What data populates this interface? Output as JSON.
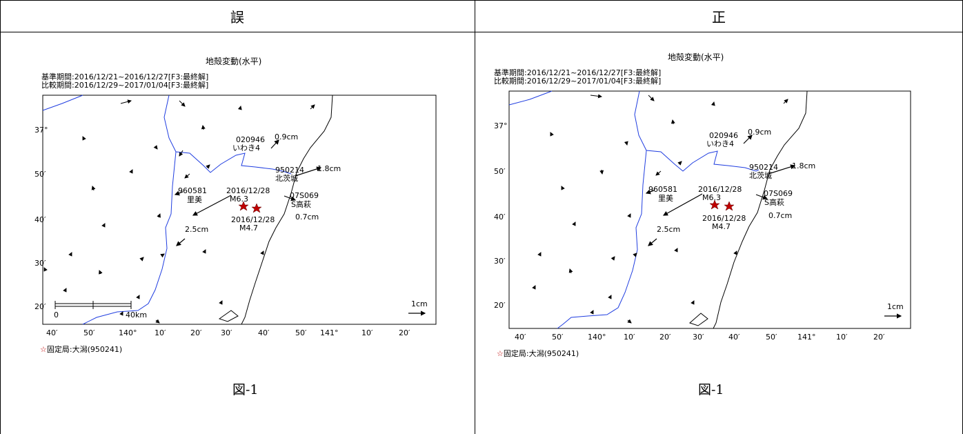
{
  "table": {
    "header_wrong": "誤",
    "header_correct": "正"
  },
  "figure": {
    "title": "地殻変動(水平)",
    "base_period": "基準期間:2016/12/21~2016/12/27[F3:最終解]",
    "compare_period": "比較期間:2016/12/29~2017/01/04[F3:最終解]",
    "fixed_station_star": "☆",
    "fixed_station": "固定局:大潟(950241)",
    "caption": "図-1",
    "lat_labels": [
      "37°",
      "50′",
      "40′",
      "30′",
      "20′"
    ],
    "lon_labels": [
      "40′",
      "50′",
      "140°",
      "10′",
      "20′",
      "30′",
      "40′",
      "50′",
      "141°",
      "10′",
      "20′"
    ],
    "stations": [
      {
        "code": "020946",
        "name": "いわき4",
        "disp": "0.9cm"
      },
      {
        "code": "950214",
        "name": "北茨城",
        "disp": "1.8cm"
      },
      {
        "code": "960581",
        "name": "里美",
        "disp": "2.5cm"
      },
      {
        "code": "07S069",
        "name": "S高萩",
        "disp": "0.7cm"
      }
    ],
    "quakes": [
      {
        "date": "2016/12/28",
        "mag": "M6.3"
      },
      {
        "date": "2016/12/28",
        "mag": "M4.7"
      }
    ],
    "scale_zero": "0",
    "scale_km": "40km",
    "scale_ref": "1cm",
    "colors": {
      "river": "#1f3de0",
      "coast": "#000000",
      "star": "#c00000"
    }
  }
}
